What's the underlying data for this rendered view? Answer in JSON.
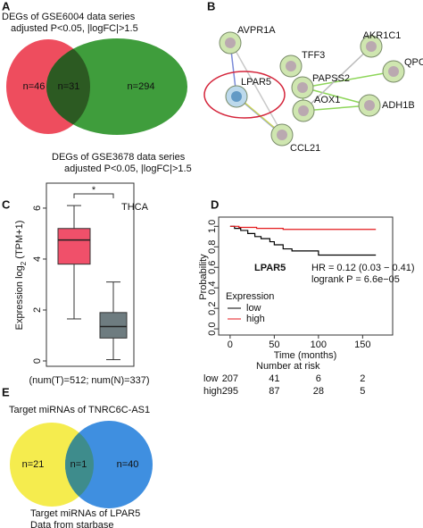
{
  "panel_a": {
    "letter": "A",
    "set1": [
      "DEGs of GSE6004 data series",
      "adjusted P<0.05, |logFC|>1.5"
    ],
    "set2": [
      "DEGs of GSE3678 data series",
      "adjusted P<0.05, |logFC|>1.5"
    ],
    "counts": [
      "n=46",
      "n=31",
      "n=294"
    ],
    "colors": [
      "#ee4d5e",
      "#3f9d3c"
    ]
  },
  "panel_b": {
    "letter": "B",
    "nodes": [
      "AVPR1A",
      "TFF3",
      "AKR1C1",
      "PAPSS2",
      "QPCT",
      "LPAR5",
      "AOX1",
      "ADH1B",
      "CCL21"
    ]
  },
  "chart_data": [
    {
      "type": "box",
      "label": "C",
      "y_label": [
        "Expression log",
        "2",
        " (TPM+1)"
      ],
      "x_label": "(num(T)=512; num(N)=337)",
      "annotations": [
        "*",
        "THCA"
      ],
      "categories": [
        null,
        null
      ],
      "boxes": [
        {
          "whislo": 1.65,
          "q1": 3.8,
          "med": 4.75,
          "q3": 5.2,
          "whishi": 6.1,
          "color": "#f0506a"
        },
        {
          "whislo": 0.05,
          "q1": 0.9,
          "med": 1.35,
          "q3": 1.9,
          "whishi": 3.1,
          "color": "#6e7c80"
        }
      ],
      "ylim": [
        -0.21,
        6.98
      ],
      "yticks": [
        0,
        2,
        4,
        6
      ]
    },
    {
      "type": "line",
      "label": "D",
      "x_label": "Time (months)",
      "y_label": "Probability",
      "xlim": [
        -13,
        184
      ],
      "xticks": [
        0,
        50,
        100,
        150
      ],
      "ylim": [
        -0.06,
        1.09
      ],
      "yticks": [
        {
          "value": 0,
          "label": "0.0"
        },
        {
          "value": 0.2,
          "label": "0.2"
        },
        {
          "value": 0.4,
          "label": "0.4"
        },
        {
          "value": 0.6,
          "label": "0.6"
        },
        {
          "value": 0.8,
          "label": "0.8"
        },
        {
          "value": 1,
          "label": "1.0"
        }
      ],
      "series": [
        {
          "name": "low",
          "color": "#000000",
          "x": [
            0,
            5,
            12,
            20,
            28,
            35,
            45,
            50,
            60,
            70,
            100,
            165
          ],
          "values": [
            1,
            0.98,
            0.96,
            0.93,
            0.9,
            0.88,
            0.85,
            0.82,
            0.78,
            0.76,
            0.72,
            0.72
          ]
        },
        {
          "name": "high",
          "color": "#e41a1c",
          "x": [
            0,
            10,
            30,
            60,
            165
          ],
          "values": [
            1,
            0.99,
            0.98,
            0.97,
            0.97
          ]
        }
      ],
      "legend_title": "Expression",
      "annotations": [
        "LPAR5",
        "HR = 0.12 (0.03 − 0.41)",
        "logrank P = 6.6e−05"
      ],
      "risk_table": {
        "title": "Number at risk",
        "rows": [
          {
            "name": "low",
            "values": [
              207,
              41,
              6,
              2
            ]
          },
          {
            "name": "high",
            "values": [
              295,
              87,
              28,
              5
            ]
          }
        ]
      }
    }
  ],
  "panel_e": {
    "letter": "E",
    "set1": "Target miRNAs of TNRC6C-AS1",
    "set2": "Target miRNAs of LPAR5",
    "source": "Data from starbase",
    "counts": [
      "n=21",
      "n=1",
      "n=40"
    ],
    "colors": [
      "#f5ec4e",
      "#3f8fe0"
    ]
  }
}
